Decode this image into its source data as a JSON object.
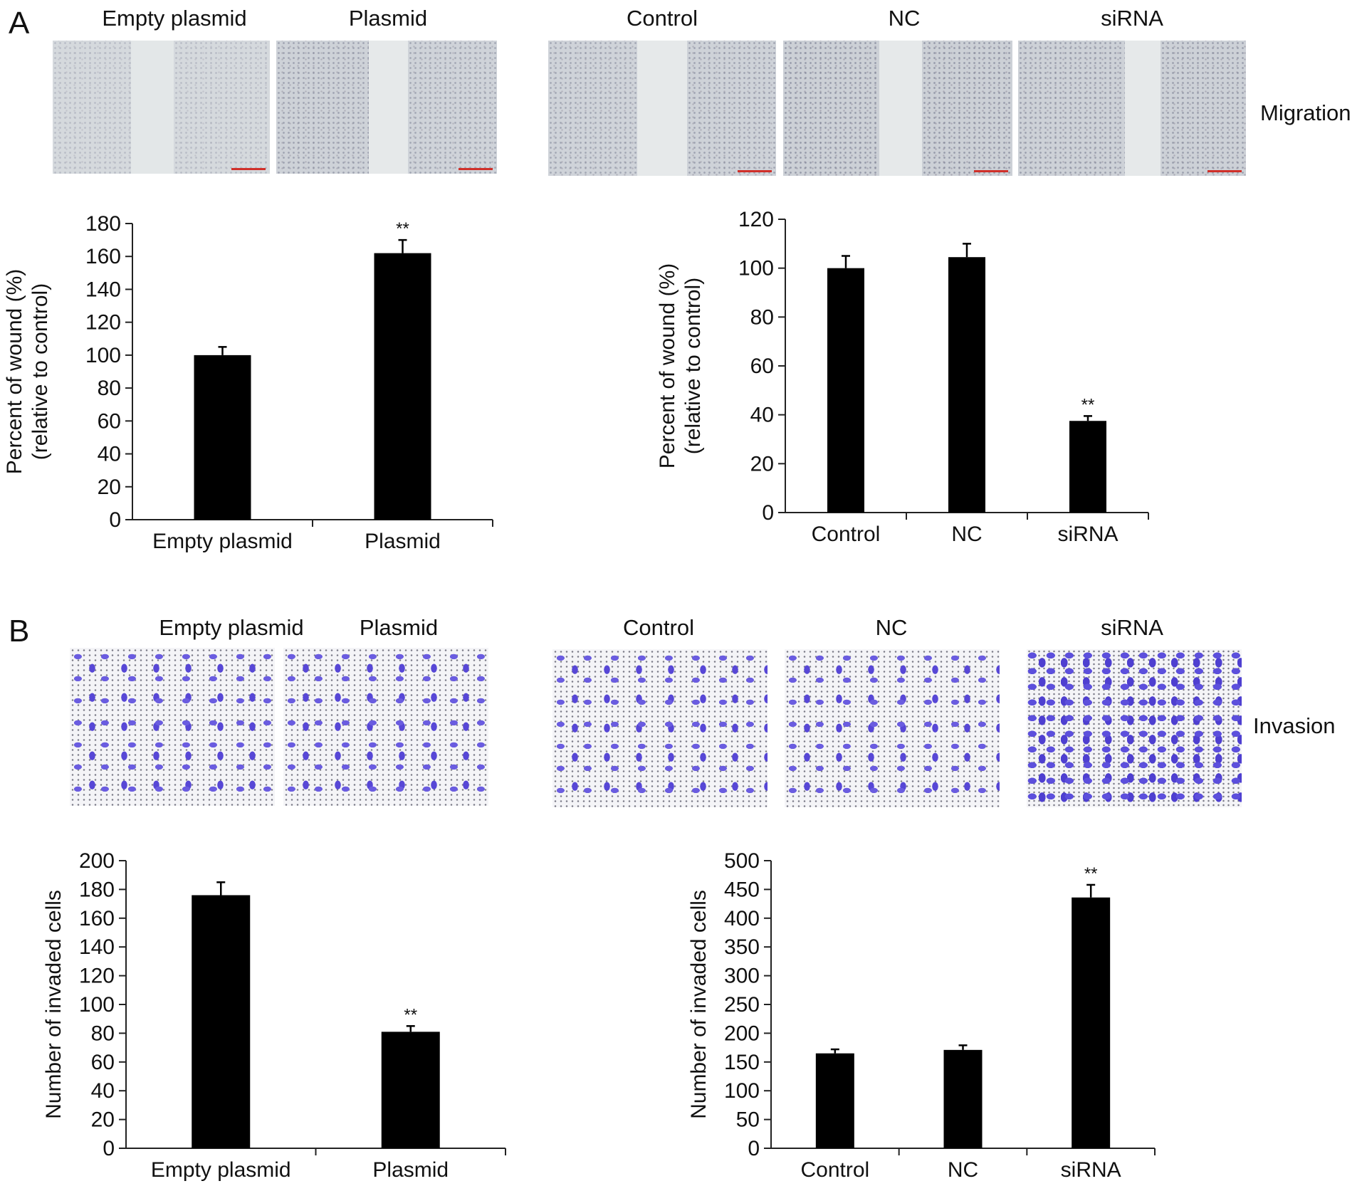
{
  "panels": [
    {
      "letter": "A",
      "side_label": "Migration",
      "image_labels": [
        "Empty plasmid",
        "Plasmid",
        "Control",
        "NC",
        "siRNA"
      ]
    },
    {
      "letter": "B",
      "side_label": "Invasion",
      "image_labels": [
        "Empty plasmid",
        "Plasmid",
        "Control",
        "NC",
        "siRNA"
      ]
    }
  ],
  "chart_data": [
    {
      "type": "bar",
      "panel": "A",
      "categories": [
        "Empty plasmid",
        "Plasmid"
      ],
      "values": [
        100,
        162
      ],
      "errors": [
        5,
        8
      ],
      "annotations": [
        "",
        "**"
      ],
      "title": "",
      "xlabel": "",
      "ylabel": [
        "Percent of wound (%)",
        "(relative to control)"
      ],
      "ylim": [
        0,
        180
      ],
      "yticks": [
        0,
        20,
        40,
        60,
        80,
        100,
        120,
        140,
        160,
        180
      ],
      "grid": false,
      "color": "#000000"
    },
    {
      "type": "bar",
      "panel": "A",
      "categories": [
        "Control",
        "NC",
        "siRNA"
      ],
      "values": [
        100,
        104.5,
        37.5
      ],
      "errors": [
        5,
        5.5,
        2
      ],
      "annotations": [
        "",
        "",
        "**"
      ],
      "title": "",
      "xlabel": "",
      "ylabel": [
        "Percent of wound (%)",
        "(relative to control)"
      ],
      "ylim": [
        0,
        120
      ],
      "yticks": [
        0,
        20,
        40,
        60,
        80,
        100,
        120
      ],
      "grid": false,
      "color": "#000000"
    },
    {
      "type": "bar",
      "panel": "B",
      "categories": [
        "Empty plasmid",
        "Plasmid"
      ],
      "values": [
        176,
        81
      ],
      "errors": [
        9,
        4
      ],
      "annotations": [
        "",
        "**"
      ],
      "title": "",
      "xlabel": "",
      "ylabel": [
        "Number of invaded cells"
      ],
      "ylim": [
        0,
        200
      ],
      "yticks": [
        0,
        20,
        40,
        60,
        80,
        100,
        120,
        140,
        160,
        180,
        200
      ],
      "grid": false,
      "color": "#000000"
    },
    {
      "type": "bar",
      "panel": "B",
      "categories": [
        "Control",
        "NC",
        "siRNA"
      ],
      "values": [
        165,
        171,
        436
      ],
      "errors": [
        7,
        8,
        22
      ],
      "annotations": [
        "",
        "",
        "**"
      ],
      "title": "",
      "xlabel": "",
      "ylabel": [
        "Number of invaded cells"
      ],
      "ylim": [
        0,
        500
      ],
      "yticks": [
        0,
        50,
        100,
        150,
        200,
        250,
        300,
        350,
        400,
        450,
        500
      ],
      "grid": false,
      "color": "#000000"
    }
  ]
}
